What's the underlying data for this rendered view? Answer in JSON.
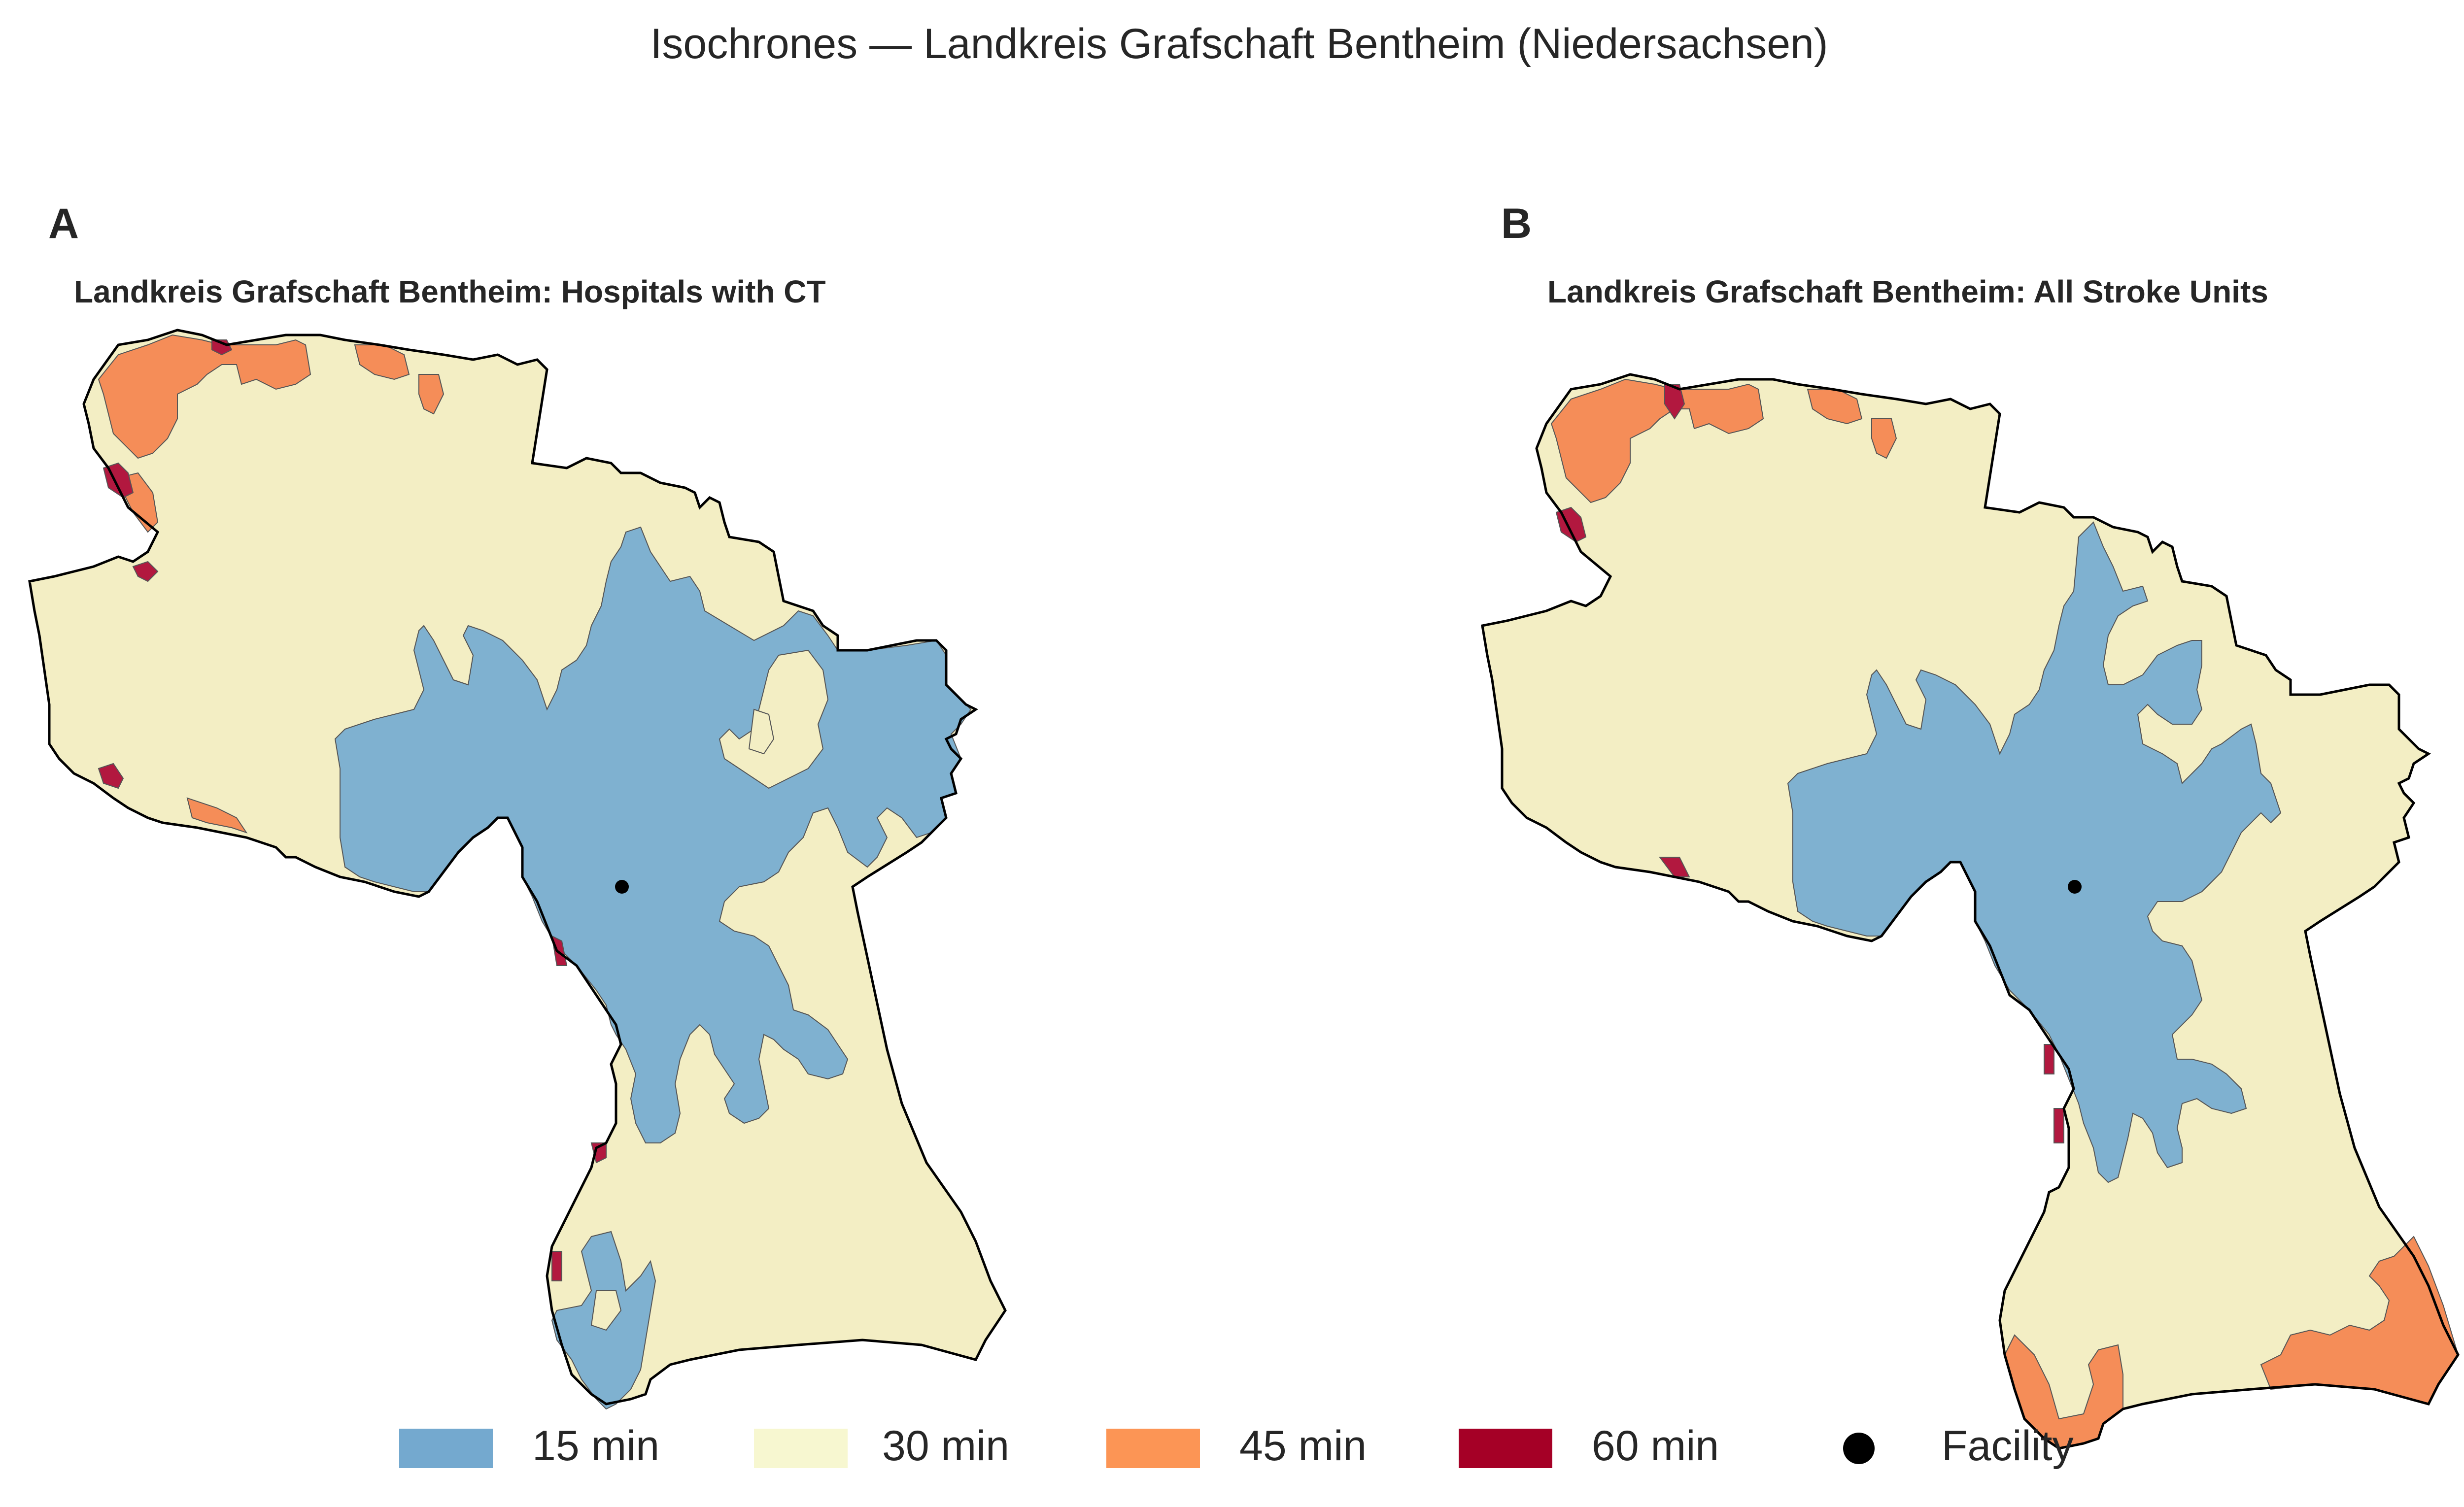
{
  "figure": {
    "title": "Isochrones — Landkreis Grafschaft Bentheim (Niedersachsen)"
  },
  "panels": [
    {
      "label": "A",
      "title": "Landkreis Grafschaft Bentheim: Hospitals with CT",
      "facility_count": 1
    },
    {
      "label": "B",
      "title": "Landkreis Grafschaft Bentheim: All Stroke Units",
      "facility_count": 1
    }
  ],
  "legend": {
    "items": [
      {
        "label": "15 min",
        "color": "#74a9cf",
        "kind": "swatch"
      },
      {
        "label": "30 min",
        "color": "#f7f7d0",
        "kind": "swatch"
      },
      {
        "label": "45 min",
        "color": "#fc9555",
        "kind": "swatch"
      },
      {
        "label": "60 min",
        "color": "#a50026",
        "kind": "swatch"
      },
      {
        "label": "Facility",
        "color": "#000000",
        "kind": "dot"
      }
    ]
  },
  "colors": {
    "zone_15": "#7fb1d0",
    "zone_30": "#f3eec4",
    "zone_45": "#f58d58",
    "zone_60": "#b2183f",
    "boundary": "#000000",
    "background": "#ffffff"
  }
}
